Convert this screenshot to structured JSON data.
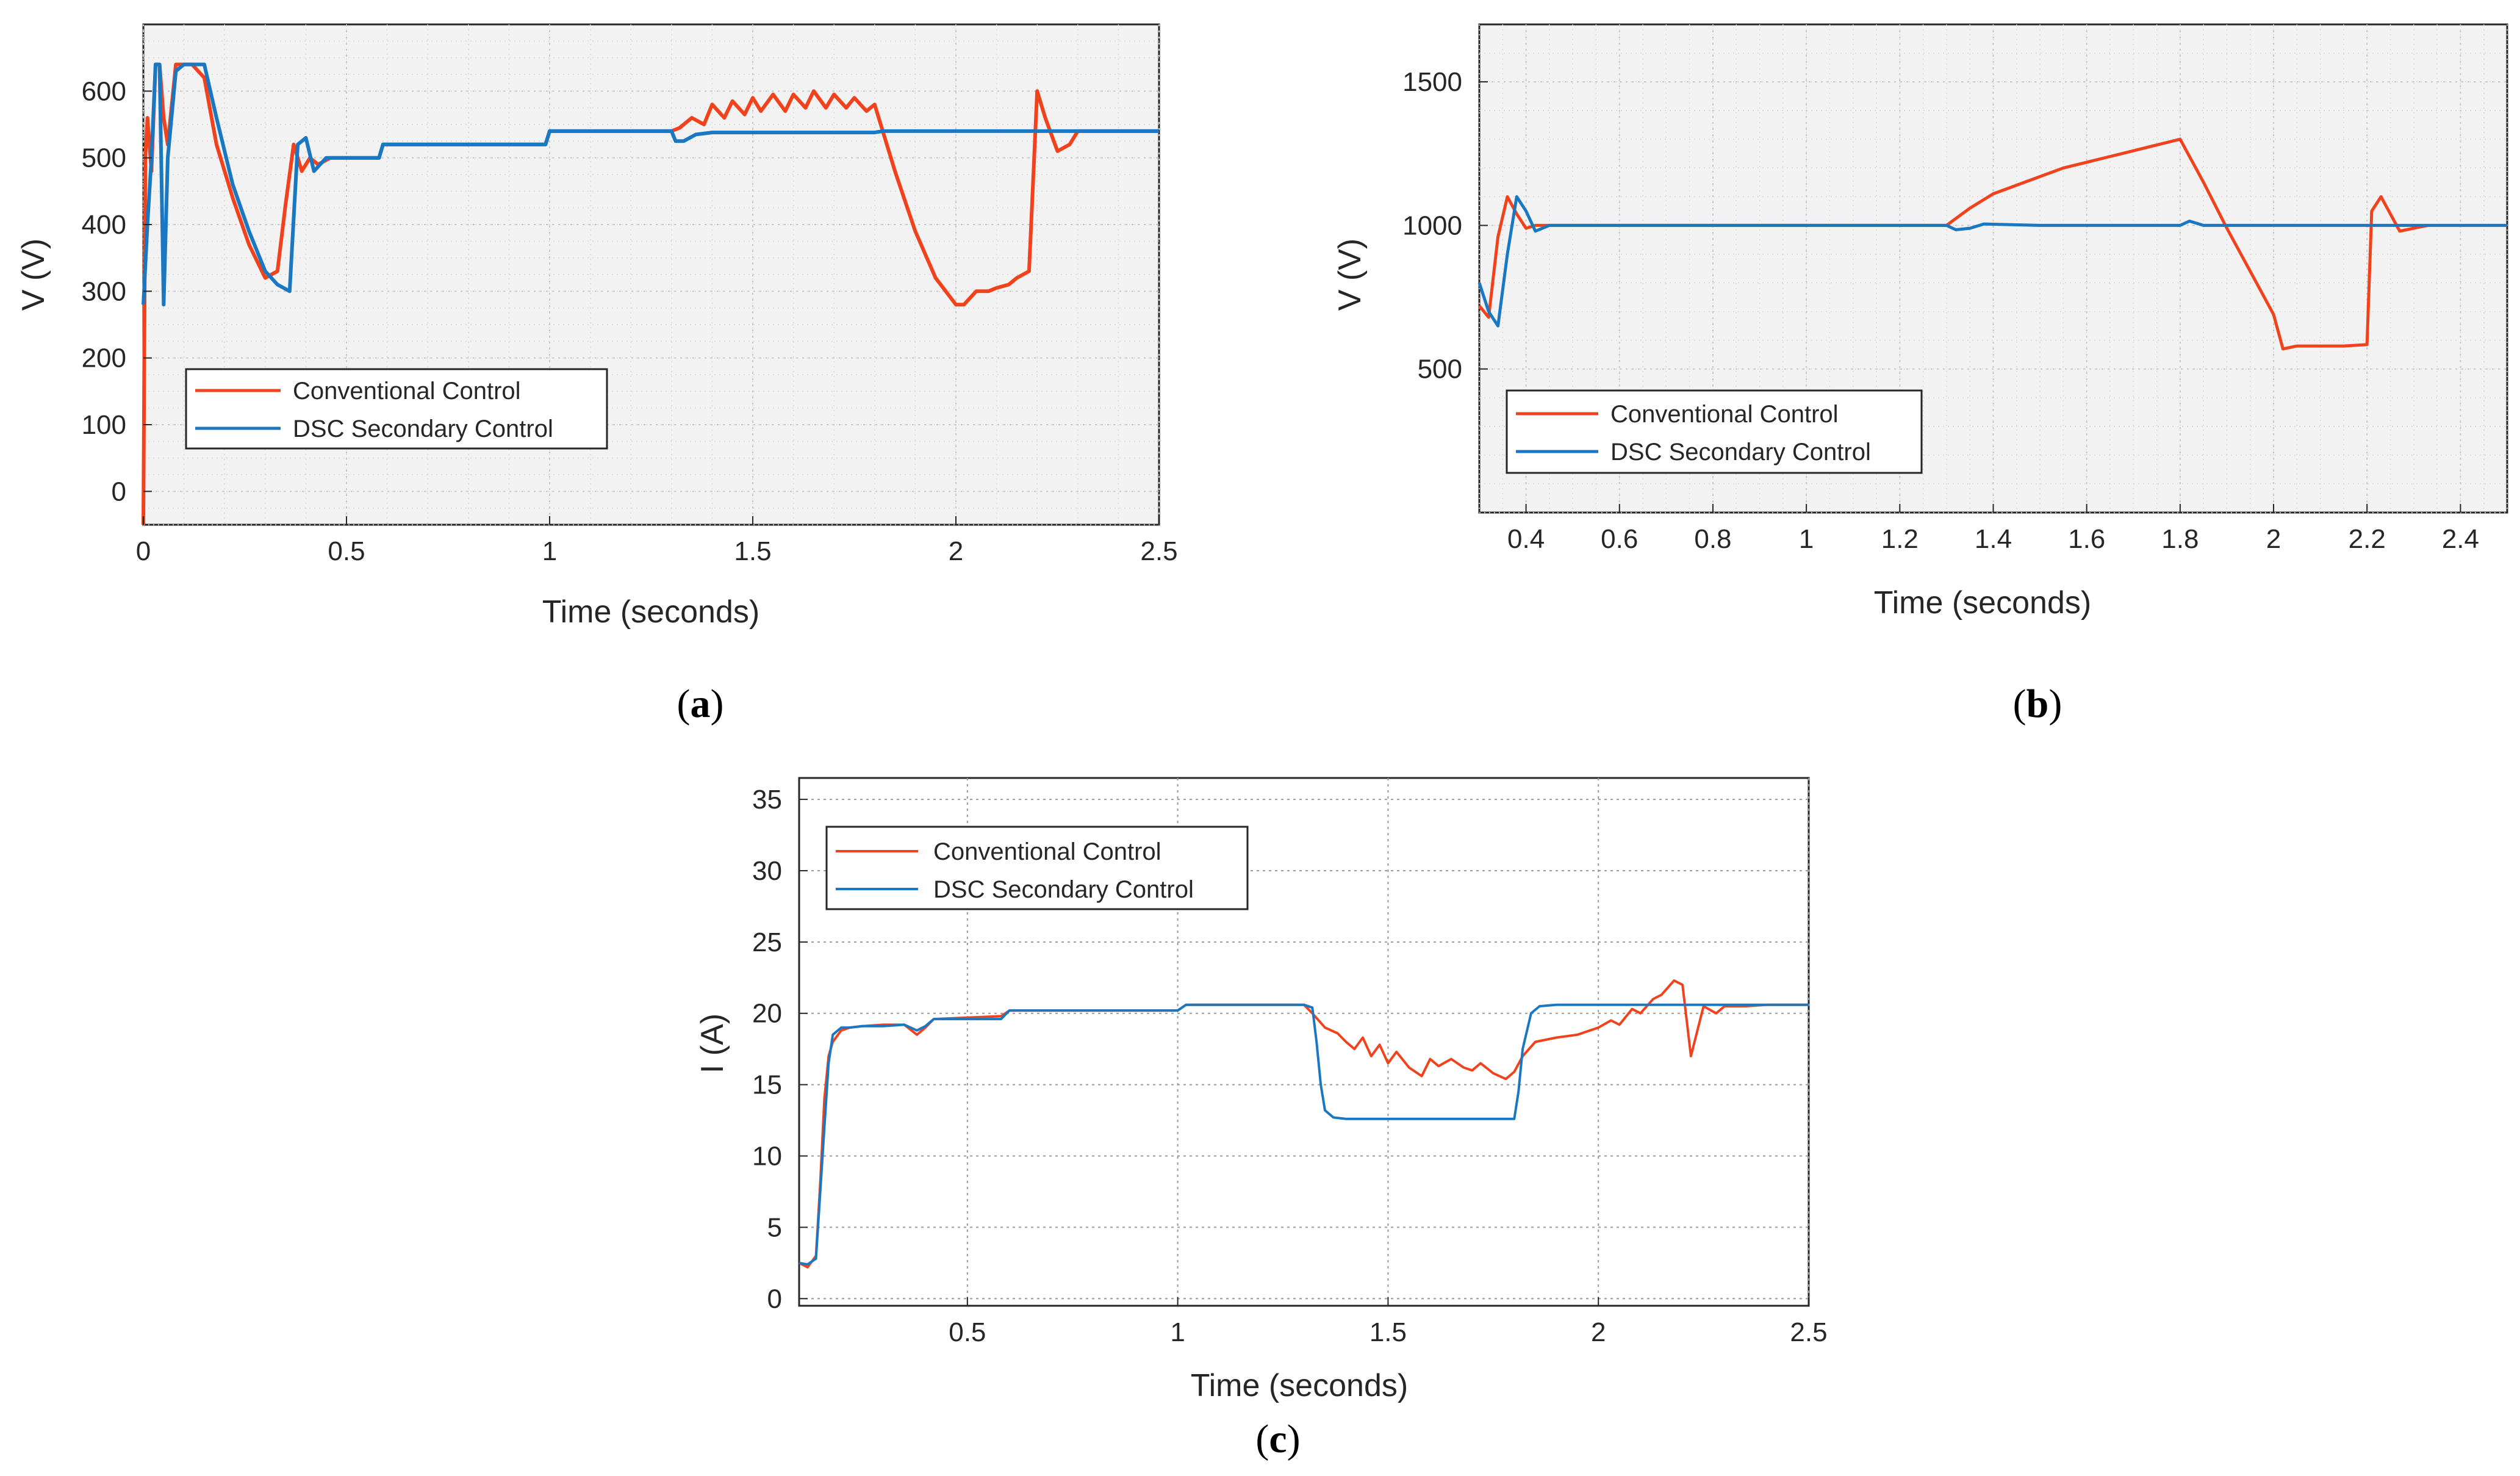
{
  "colors": {
    "conventional": "#f0421c",
    "dsc": "#1a78c2",
    "grid": "#c8c8c8",
    "axis": "#262626",
    "plot_bg_ab": "#f2f2f2",
    "plot_bg_c": "#ffffff"
  },
  "chart_data": [
    {
      "id": "a",
      "type": "line",
      "caption_letter": "a",
      "xlabel": "Time (seconds)",
      "ylabel": "V (V)",
      "xlim": [
        0,
        2.5
      ],
      "ylim": [
        -50,
        700
      ],
      "xticks": [
        0,
        0.5,
        1,
        1.5,
        2,
        2.5
      ],
      "xtick_labels": [
        "0",
        "0.5",
        "1",
        "1.5",
        "2",
        "2.5"
      ],
      "yticks": [
        0,
        100,
        200,
        300,
        400,
        500,
        600
      ],
      "ytick_labels": [
        "0",
        "100",
        "200",
        "300",
        "400",
        "500",
        "600"
      ],
      "grid": true,
      "legend_position": "bottom-left",
      "series": [
        {
          "name": "Conventional Control",
          "x": [
            0,
            0.005,
            0.01,
            0.02,
            0.03,
            0.04,
            0.05,
            0.06,
            0.08,
            0.1,
            0.12,
            0.15,
            0.18,
            0.22,
            0.26,
            0.3,
            0.33,
            0.35,
            0.37,
            0.39,
            0.41,
            0.43,
            0.46,
            0.5,
            0.55,
            0.58,
            0.59,
            0.7,
            0.8,
            0.9,
            0.99,
            1.0,
            1.1,
            1.2,
            1.3,
            1.32,
            1.35,
            1.38,
            1.4,
            1.43,
            1.45,
            1.48,
            1.5,
            1.52,
            1.55,
            1.58,
            1.6,
            1.63,
            1.65,
            1.68,
            1.7,
            1.73,
            1.75,
            1.78,
            1.8,
            1.85,
            1.9,
            1.95,
            2.0,
            2.02,
            2.05,
            2.08,
            2.1,
            2.13,
            2.15,
            2.18,
            2.2,
            2.22,
            2.25,
            2.28,
            2.3,
            2.35,
            2.5
          ],
          "values": [
            -50,
            500,
            560,
            480,
            640,
            640,
            560,
            520,
            640,
            640,
            640,
            620,
            520,
            440,
            370,
            320,
            330,
            430,
            520,
            480,
            500,
            490,
            500,
            500,
            500,
            500,
            520,
            520,
            520,
            520,
            520,
            540,
            540,
            540,
            540,
            545,
            560,
            550,
            580,
            560,
            585,
            565,
            590,
            570,
            595,
            570,
            595,
            575,
            600,
            575,
            595,
            575,
            590,
            570,
            580,
            480,
            390,
            320,
            280,
            280,
            300,
            300,
            305,
            310,
            320,
            330,
            600,
            560,
            510,
            520,
            540,
            540,
            540
          ]
        },
        {
          "name": "DSC Secondary Control",
          "x": [
            0,
            0.01,
            0.02,
            0.03,
            0.04,
            0.05,
            0.06,
            0.08,
            0.1,
            0.12,
            0.15,
            0.18,
            0.22,
            0.26,
            0.3,
            0.33,
            0.36,
            0.38,
            0.4,
            0.42,
            0.45,
            0.5,
            0.55,
            0.58,
            0.59,
            0.7,
            0.8,
            0.9,
            0.99,
            1.0,
            1.1,
            1.2,
            1.3,
            1.31,
            1.33,
            1.36,
            1.4,
            1.5,
            1.6,
            1.7,
            1.8,
            1.82,
            1.9,
            2.0,
            2.1,
            2.2,
            2.3,
            2.5
          ],
          "values": [
            280,
            400,
            500,
            640,
            640,
            280,
            500,
            630,
            640,
            640,
            640,
            560,
            460,
            390,
            330,
            310,
            300,
            520,
            530,
            480,
            500,
            500,
            500,
            500,
            520,
            520,
            520,
            520,
            520,
            540,
            540,
            540,
            540,
            525,
            525,
            535,
            538,
            538,
            538,
            538,
            538,
            540,
            540,
            540,
            540,
            540,
            540,
            540
          ]
        }
      ]
    },
    {
      "id": "b",
      "type": "line",
      "caption_letter": "b",
      "xlabel": "Time (seconds)",
      "ylabel": "V (V)",
      "xlim": [
        0.3,
        2.5
      ],
      "ylim": [
        0,
        1700
      ],
      "xticks": [
        0.4,
        0.6,
        0.8,
        1.0,
        1.2,
        1.4,
        1.6,
        1.8,
        2.0,
        2.2,
        2.4
      ],
      "xtick_labels": [
        "0.4",
        "0.6",
        "0.8",
        "1",
        "1.2",
        "1.4",
        "1.6",
        "1.8",
        "2",
        "2.2",
        "2.4"
      ],
      "yticks": [
        500,
        1000,
        1500
      ],
      "ytick_labels": [
        "500",
        "1000",
        "1500"
      ],
      "grid": true,
      "legend_position": "bottom-left",
      "series": [
        {
          "name": "Conventional Control",
          "x": [
            0.3,
            0.32,
            0.34,
            0.36,
            0.38,
            0.4,
            0.42,
            0.45,
            0.5,
            1.3,
            1.35,
            1.4,
            1.45,
            1.5,
            1.55,
            1.6,
            1.65,
            1.7,
            1.75,
            1.8,
            1.85,
            1.9,
            1.95,
            2.0,
            2.02,
            2.05,
            2.1,
            2.15,
            2.2,
            2.21,
            2.23,
            2.25,
            2.27,
            2.3,
            2.33
          ],
          "values": [
            720,
            680,
            960,
            1100,
            1040,
            990,
            1000,
            1000,
            1000,
            1000,
            1060,
            1110,
            1140,
            1170,
            1200,
            1220,
            1240,
            1260,
            1280,
            1300,
            1150,
            990,
            840,
            690,
            570,
            580,
            580,
            580,
            585,
            1050,
            1100,
            1040,
            980,
            990,
            1000
          ]
        },
        {
          "name": "DSC Secondary Control",
          "x": [
            0.3,
            0.32,
            0.34,
            0.36,
            0.38,
            0.4,
            0.42,
            0.45,
            0.5,
            1.0,
            1.3,
            1.32,
            1.35,
            1.38,
            1.5,
            1.8,
            1.82,
            1.85,
            2.0,
            2.5
          ],
          "values": [
            800,
            700,
            650,
            900,
            1100,
            1050,
            980,
            1000,
            1000,
            1000,
            1000,
            985,
            990,
            1005,
            1000,
            1000,
            1015,
            1000,
            1000,
            1000
          ]
        }
      ]
    },
    {
      "id": "c",
      "type": "line",
      "caption_letter": "c",
      "xlabel": "Time (seconds)",
      "ylabel": "I (A)",
      "xlim": [
        0.1,
        2.5
      ],
      "ylim": [
        -0.5,
        36.5
      ],
      "xticks": [
        0.5,
        1,
        1.5,
        2,
        2.5
      ],
      "xtick_labels": [
        "0.5",
        "1",
        "1.5",
        "2",
        "2.5"
      ],
      "yticks": [
        0,
        5,
        10,
        15,
        20,
        25,
        30,
        35
      ],
      "ytick_labels": [
        "0",
        "5",
        "10",
        "15",
        "20",
        "25",
        "30",
        "35"
      ],
      "grid": true,
      "legend_position": "top-left",
      "series": [
        {
          "name": "Conventional Control",
          "x": [
            0.1,
            0.12,
            0.14,
            0.15,
            0.16,
            0.17,
            0.18,
            0.2,
            0.22,
            0.25,
            0.3,
            0.35,
            0.38,
            0.4,
            0.42,
            0.5,
            0.58,
            0.6,
            0.7,
            0.8,
            0.9,
            1.0,
            1.02,
            1.1,
            1.2,
            1.3,
            1.32,
            1.35,
            1.38,
            1.4,
            1.42,
            1.44,
            1.46,
            1.48,
            1.5,
            1.52,
            1.55,
            1.58,
            1.6,
            1.62,
            1.65,
            1.68,
            1.7,
            1.72,
            1.75,
            1.78,
            1.8,
            1.82,
            1.85,
            1.9,
            1.95,
            2.0,
            2.03,
            2.05,
            2.08,
            2.1,
            2.13,
            2.15,
            2.18,
            2.2,
            2.22,
            2.25,
            2.28,
            2.3,
            2.35,
            2.4,
            2.5
          ],
          "values": [
            2.5,
            2.2,
            3.0,
            8.0,
            14.0,
            17.0,
            18.0,
            18.8,
            19.0,
            19.1,
            19.2,
            19.2,
            18.5,
            19.0,
            19.6,
            19.7,
            19.8,
            20.2,
            20.2,
            20.2,
            20.2,
            20.2,
            20.6,
            20.6,
            20.6,
            20.6,
            20.0,
            19.0,
            18.6,
            18.0,
            17.5,
            18.3,
            17.0,
            17.8,
            16.5,
            17.3,
            16.2,
            15.6,
            16.8,
            16.3,
            16.8,
            16.2,
            16.0,
            16.5,
            15.8,
            15.4,
            15.9,
            17.0,
            18.0,
            18.3,
            18.5,
            19.0,
            19.5,
            19.2,
            20.3,
            20.0,
            21.0,
            21.3,
            22.3,
            22.0,
            17.0,
            20.5,
            20.0,
            20.5,
            20.5,
            20.6,
            20.6
          ]
        },
        {
          "name": "DSC Secondary Control",
          "x": [
            0.1,
            0.12,
            0.14,
            0.16,
            0.17,
            0.18,
            0.2,
            0.22,
            0.25,
            0.3,
            0.35,
            0.38,
            0.4,
            0.42,
            0.5,
            0.58,
            0.6,
            0.7,
            0.8,
            0.9,
            1.0,
            1.02,
            1.1,
            1.2,
            1.3,
            1.32,
            1.33,
            1.34,
            1.35,
            1.37,
            1.4,
            1.5,
            1.6,
            1.7,
            1.8,
            1.81,
            1.82,
            1.84,
            1.86,
            1.9,
            2.0,
            2.1,
            2.2,
            2.3,
            2.4,
            2.5
          ],
          "values": [
            2.5,
            2.4,
            2.8,
            12.0,
            16.5,
            18.5,
            19.0,
            19.0,
            19.1,
            19.1,
            19.2,
            18.8,
            19.1,
            19.6,
            19.6,
            19.6,
            20.2,
            20.2,
            20.2,
            20.2,
            20.2,
            20.6,
            20.6,
            20.6,
            20.6,
            20.4,
            18.0,
            15.0,
            13.2,
            12.7,
            12.6,
            12.6,
            12.6,
            12.6,
            12.6,
            14.5,
            17.5,
            20.0,
            20.5,
            20.6,
            20.6,
            20.6,
            20.6,
            20.6,
            20.6,
            20.6
          ]
        }
      ]
    }
  ]
}
